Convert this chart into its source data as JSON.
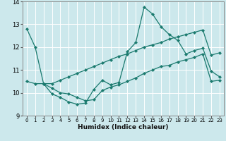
{
  "xlabel": "Humidex (Indice chaleur)",
  "bg_color": "#cce8ec",
  "line_color": "#1a7a6e",
  "grid_color": "#ffffff",
  "xlim": [
    -0.5,
    23.5
  ],
  "ylim": [
    9,
    14
  ],
  "yticks": [
    9,
    10,
    11,
    12,
    13,
    14
  ],
  "xticks": [
    0,
    1,
    2,
    3,
    4,
    5,
    6,
    7,
    8,
    9,
    10,
    11,
    12,
    13,
    14,
    15,
    16,
    17,
    18,
    19,
    20,
    21,
    22,
    23
  ],
  "line1_x": [
    0,
    1,
    2,
    3,
    4,
    5,
    6,
    7,
    8,
    9,
    10,
    11,
    12,
    13,
    14,
    15,
    16,
    17,
    18,
    19,
    20,
    21,
    22,
    23
  ],
  "line1_y": [
    12.8,
    12.0,
    10.4,
    9.95,
    9.8,
    9.6,
    9.5,
    9.55,
    10.15,
    10.55,
    10.35,
    10.45,
    11.8,
    12.2,
    13.75,
    13.45,
    12.9,
    12.55,
    12.3,
    11.7,
    11.85,
    11.95,
    10.95,
    10.7
  ],
  "line2_x": [
    2,
    3,
    4,
    5,
    6,
    7,
    8,
    9,
    10,
    11,
    12,
    13,
    14,
    15,
    16,
    17,
    18,
    19,
    20,
    21,
    22,
    23
  ],
  "line2_y": [
    10.4,
    10.2,
    10.0,
    9.95,
    9.8,
    9.65,
    9.7,
    10.1,
    10.25,
    10.35,
    10.5,
    10.65,
    10.85,
    11.0,
    11.15,
    11.2,
    11.35,
    11.45,
    11.55,
    11.7,
    10.5,
    10.55
  ],
  "line3_x": [
    0,
    1,
    2,
    3,
    4,
    5,
    6,
    7,
    8,
    9,
    10,
    11,
    12,
    13,
    14,
    15,
    16,
    17,
    18,
    19,
    20,
    21,
    22,
    23
  ],
  "line3_y": [
    10.5,
    10.4,
    10.4,
    10.4,
    10.55,
    10.7,
    10.85,
    11.0,
    11.15,
    11.3,
    11.45,
    11.6,
    11.7,
    11.85,
    12.0,
    12.1,
    12.2,
    12.35,
    12.45,
    12.55,
    12.65,
    12.75,
    11.65,
    11.75
  ]
}
